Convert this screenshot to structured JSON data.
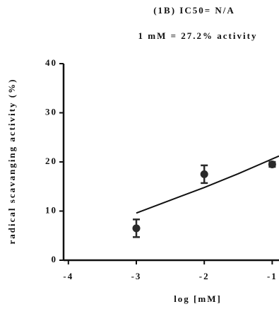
{
  "chart_data": {
    "type": "scatter",
    "title": "(1B) IC50= N/A",
    "subtitle": "1 mM = 27.2% activity",
    "x_label": "log [mM]",
    "y_label": "radical scavanging activity (%)",
    "xlim": [
      -4.05,
      -0.9
    ],
    "ylim": [
      0,
      40
    ],
    "xticks": [
      -4,
      -3,
      -2,
      -1
    ],
    "yticks": [
      0,
      10,
      20,
      30,
      40
    ],
    "series": [
      {
        "kind": "points",
        "color": "#2a2a2a",
        "x": [
          -3,
          -2,
          -1
        ],
        "values": [
          6.5,
          17.5,
          19.5
        ],
        "error": [
          1.8,
          1.8,
          0.5
        ]
      },
      {
        "kind": "line",
        "color": "#111111",
        "x": [
          -3,
          -2.5,
          -2,
          -1.5,
          -1,
          -0.9
        ],
        "values": [
          9.6,
          12.2,
          14.8,
          17.6,
          20.6,
          21.2
        ]
      }
    ]
  }
}
